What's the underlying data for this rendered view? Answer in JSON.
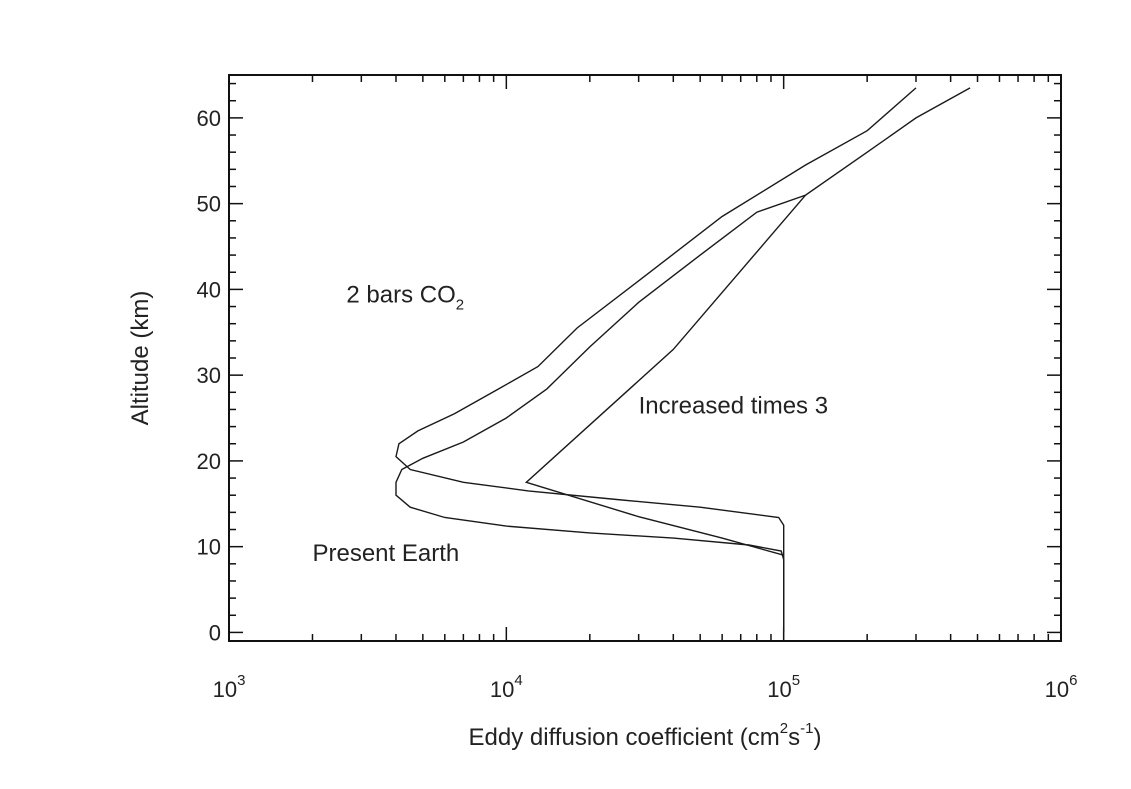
{
  "chart_data": {
    "type": "line",
    "xlabel": {
      "pre": "Eddy diffusion coefficient (cm",
      "sup1": "2",
      "mid": "s",
      "sup2": "-1",
      "post": ")"
    },
    "ylabel": "Altitude (km)",
    "xscale": "log",
    "xlim": [
      1000,
      1000000
    ],
    "ylim": [
      -1,
      65
    ],
    "xticks": [
      {
        "value": 1000,
        "base": "10",
        "exp": "3"
      },
      {
        "value": 10000,
        "base": "10",
        "exp": "4"
      },
      {
        "value": 100000,
        "base": "10",
        "exp": "5"
      },
      {
        "value": 1000000,
        "base": "10",
        "exp": "6"
      }
    ],
    "yticks": [
      0,
      10,
      20,
      30,
      40,
      50,
      60
    ],
    "grid": false,
    "annotations": [
      {
        "text": "2 bars CO",
        "sub": "2",
        "x": 2650,
        "y": 38.5
      },
      {
        "text": "Increased times 3",
        "x": 30000,
        "y": 25.5
      },
      {
        "text": "Present Earth",
        "x": 2000,
        "y": 8.3
      }
    ],
    "series": [
      {
        "points": [
          [
            100000,
            0
          ],
          [
            100000,
            8.5
          ],
          [
            98000,
            9.5
          ],
          [
            75000,
            10.2
          ],
          [
            40000,
            11
          ],
          [
            20000,
            11.6
          ],
          [
            10000,
            12.4
          ],
          [
            6000,
            13.4
          ],
          [
            4500,
            14.6
          ],
          [
            4000,
            16
          ],
          [
            4000,
            17.5
          ],
          [
            4200,
            19
          ],
          [
            5000,
            20.3
          ],
          [
            7000,
            22.2
          ],
          [
            10000,
            25
          ],
          [
            14000,
            28.4
          ],
          [
            20000,
            33.3
          ],
          [
            30000,
            38.5
          ],
          [
            50000,
            44
          ],
          [
            80000,
            49
          ],
          [
            120000,
            51
          ],
          [
            200000,
            56
          ],
          [
            300000,
            60
          ],
          [
            470000,
            63.5
          ]
        ]
      },
      {
        "points": [
          [
            100000,
            0
          ],
          [
            100000,
            12.5
          ],
          [
            96000,
            13.4
          ],
          [
            50000,
            14.6
          ],
          [
            25000,
            15.5
          ],
          [
            12000,
            16.5
          ],
          [
            7000,
            17.5
          ],
          [
            4500,
            19
          ],
          [
            4000,
            20.5
          ],
          [
            4100,
            22
          ],
          [
            4800,
            23.5
          ],
          [
            6500,
            25.5
          ],
          [
            9500,
            28.5
          ],
          [
            13000,
            31
          ],
          [
            18000,
            35.5
          ],
          [
            30000,
            41
          ],
          [
            60000,
            48.5
          ],
          [
            120000,
            54.5
          ],
          [
            200000,
            58.5
          ],
          [
            300000,
            63.5
          ]
        ]
      },
      {
        "points": [
          [
            100000,
            9
          ],
          [
            60000,
            11
          ],
          [
            30000,
            13.5
          ],
          [
            11800,
            17.5
          ],
          [
            40000,
            33
          ],
          [
            120000,
            51
          ]
        ]
      }
    ]
  }
}
